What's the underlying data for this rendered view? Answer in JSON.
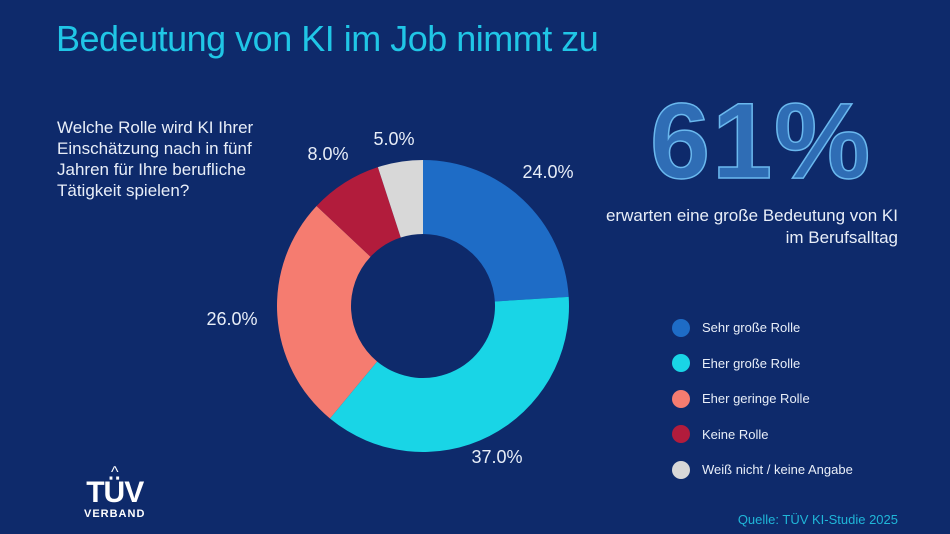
{
  "title": "Bedeutung von KI im Job nimmt zu",
  "question": "Welche Rolle wird KI Ihrer Einschätzung nach in fünf Jahren für Ihre berufliche Tätigkeit spielen?",
  "highlight": {
    "value": "61%",
    "text": "erwarten eine große Bedeutung von KI im Berufsalltag"
  },
  "chart_data": {
    "type": "pie",
    "variant": "donut",
    "start": "top, clockwise",
    "categories": [
      "Sehr große Rolle",
      "Eher große Rolle",
      "Eher geringe Rolle",
      "Keine Rolle",
      "Weiß nicht / keine Angabe"
    ],
    "values": [
      24.0,
      37.0,
      26.0,
      8.0,
      5.0
    ],
    "labels": [
      "24.0%",
      "37.0%",
      "26.0%",
      "8.0%",
      "5.0%"
    ],
    "colors": [
      "#1e6cc6",
      "#19d5e6",
      "#f57c70",
      "#b21c3c",
      "#d8d8d8"
    ],
    "legend_placement": "right"
  },
  "logo": {
    "name": "TÜV",
    "sub": "VERBAND"
  },
  "source": "Quelle: TÜV KI-Studie 2025"
}
